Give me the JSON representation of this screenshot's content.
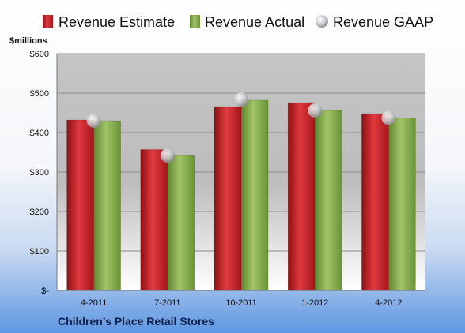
{
  "chart_data": {
    "type": "bar",
    "unit_label": "$millions",
    "categories": [
      "4-2011",
      "7-2011",
      "10-2011",
      "1-2012",
      "4-2012"
    ],
    "series": [
      {
        "name": "Revenue Estimate",
        "kind": "bar",
        "color": "#d0262b",
        "values": [
          432,
          357,
          466,
          476,
          448
        ]
      },
      {
        "name": "Revenue Actual",
        "kind": "bar",
        "color": "#8db34f",
        "values": [
          430,
          342,
          482,
          456,
          437
        ]
      },
      {
        "name": "Revenue GAAP",
        "kind": "marker",
        "color": "#c7c9cc",
        "values": [
          430,
          342,
          484,
          456,
          437
        ]
      }
    ],
    "y_ticks": [
      "$-",
      "$100",
      "$200",
      "$300",
      "$400",
      "$500",
      "$600"
    ],
    "ylim": [
      0,
      600
    ],
    "grid": true,
    "legend_position": "top",
    "footer_title": "Children’s Place Retail Stores"
  }
}
